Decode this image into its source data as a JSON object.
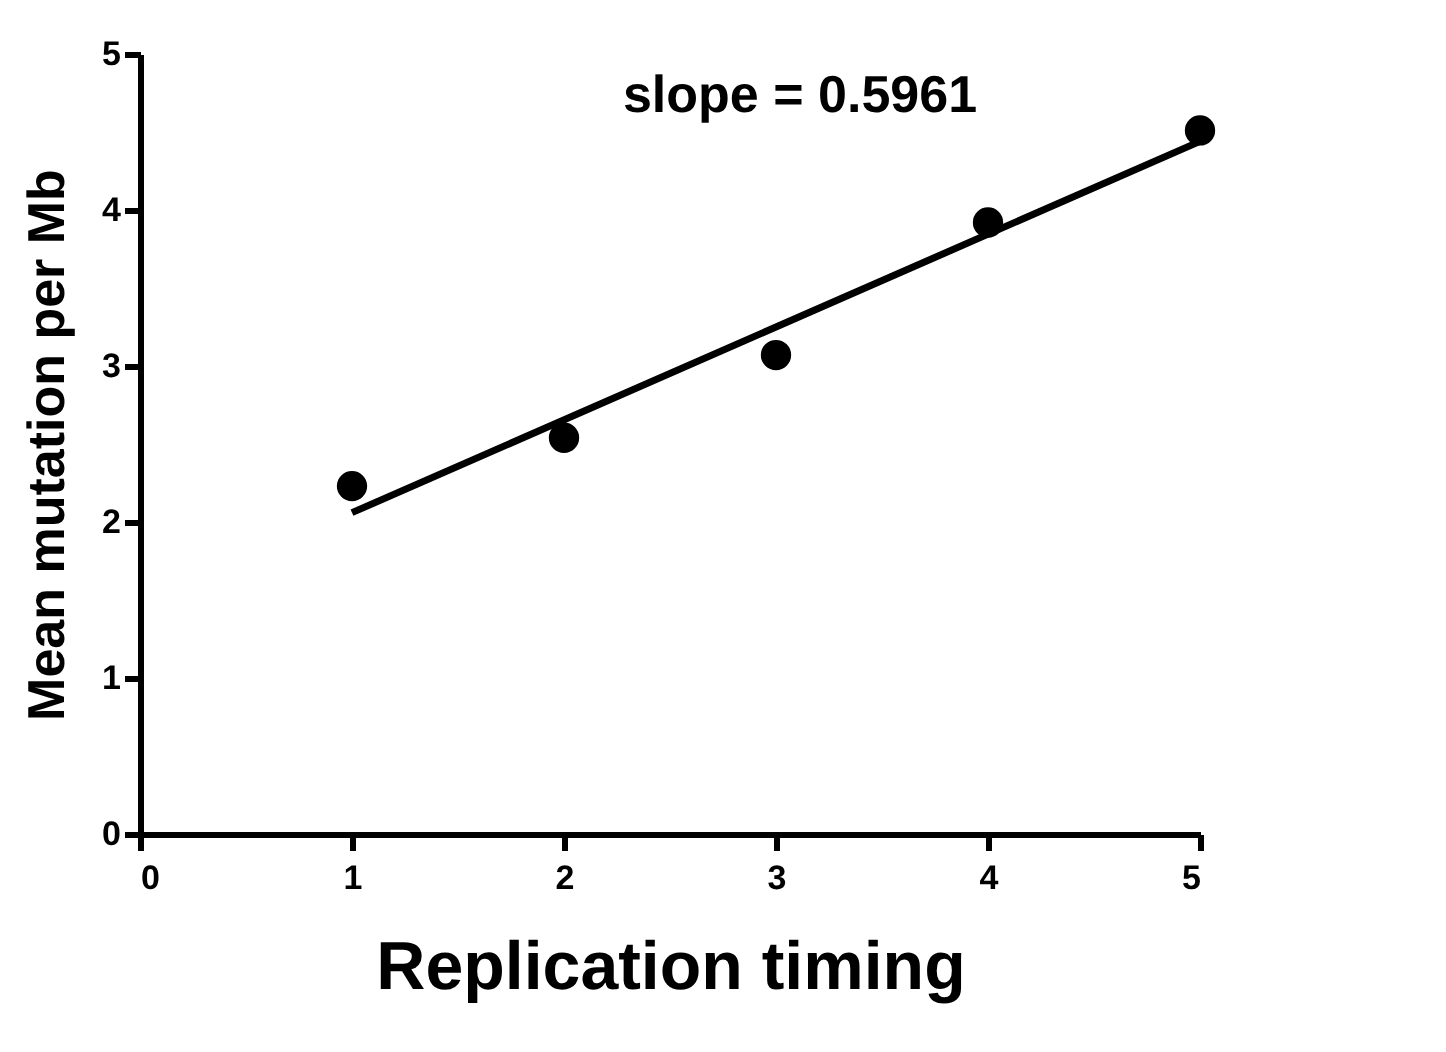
{
  "chart_data": {
    "type": "scatter",
    "xlabel": "Replication timing",
    "ylabel": "Mean mutation per Mb",
    "annotations": [
      "slope = 0.5961"
    ],
    "x": [
      1,
      2,
      3,
      4,
      5
    ],
    "series": [
      {
        "color": "#000000",
        "marker": "circle",
        "values": [
          2.23,
          2.54,
          3.07,
          3.92,
          4.51
        ]
      },
      {
        "type": "line",
        "color": "#000000",
        "marker": "none",
        "line_style": "solid",
        "x": [
          1,
          5
        ],
        "values": [
          2.06,
          4.44
        ]
      }
    ],
    "xlim": [
      0,
      5
    ],
    "ylim": [
      0,
      5
    ],
    "xticks": [
      0,
      1,
      2,
      3,
      4,
      5
    ],
    "yticks": [
      0,
      1,
      2,
      3,
      4,
      5
    ],
    "grid": false
  }
}
